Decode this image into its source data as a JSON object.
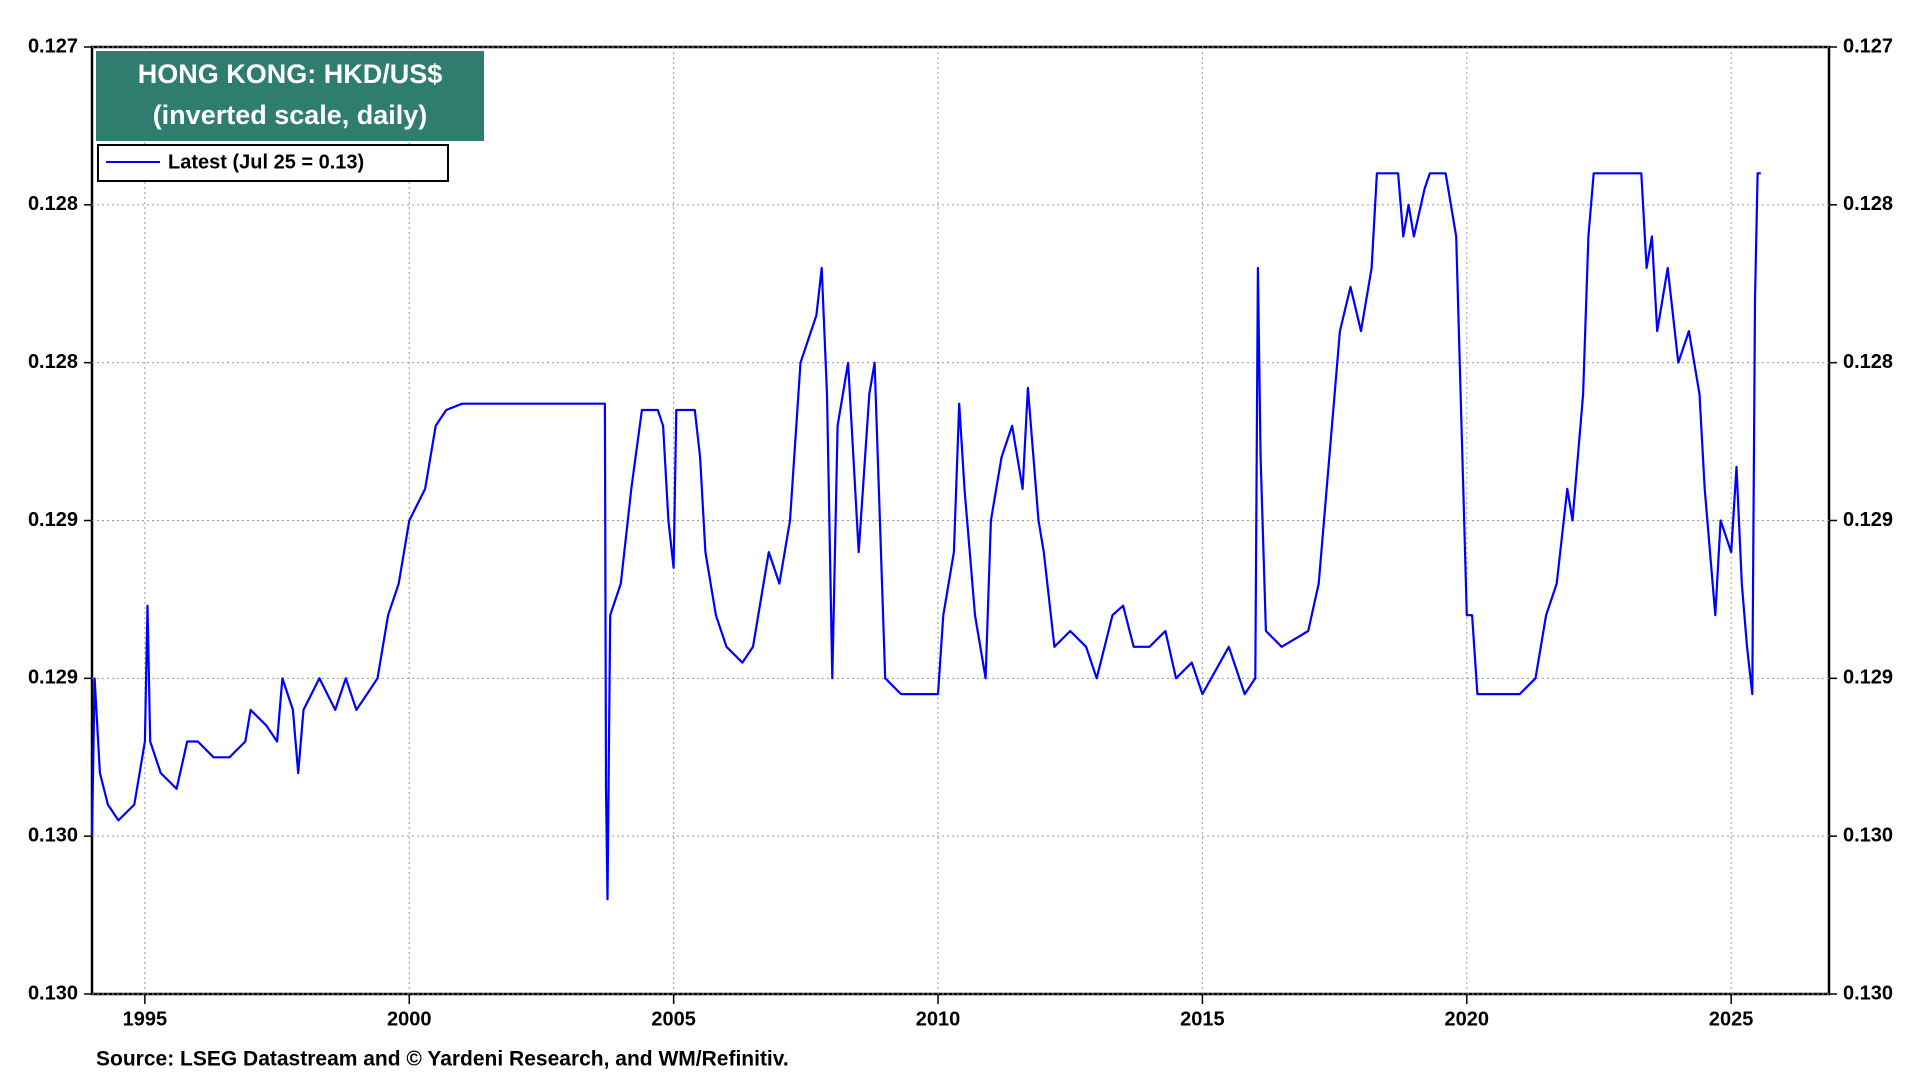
{
  "chart_data": {
    "type": "line",
    "title": "HONG KONG: HKD/US$",
    "subtitle": "(inverted scale, daily)",
    "source": "Source: LSEG Datastream and © Yardeni Research, and WM/Refinitiv.",
    "inverted": true,
    "grid": true,
    "legend": "upper left",
    "xlim": [
      1994.0,
      2026.85
    ],
    "xticks": [
      1995,
      2000,
      2005,
      2010,
      2015,
      2020,
      2025
    ],
    "ylim": [
      0.127,
      0.13
    ],
    "yticks": [
      0.127,
      {
        "value": 0.1275,
        "label": "0.128"
      },
      0.128,
      {
        "value": 0.1285,
        "label": "0.129"
      },
      0.129,
      {
        "value": 0.1295,
        "label": "0.130"
      },
      {
        "value": 0.13,
        "label": "0.130"
      }
    ],
    "series": [
      {
        "name": "Latest (Jul 25 = 0.13)",
        "color": "#0000ff",
        "x": [
          1994.0,
          1994.05,
          1994.15,
          1994.3,
          1994.5,
          1994.8,
          1995.0,
          1995.05,
          1995.1,
          1995.3,
          1995.6,
          1995.8,
          1996.0,
          1996.3,
          1996.6,
          1996.9,
          1997.0,
          1997.3,
          1997.5,
          1997.6,
          1997.8,
          1997.9,
          1998.0,
          1998.3,
          1998.6,
          1998.8,
          1999.0,
          1999.2,
          1999.4,
          1999.6,
          1999.8,
          2000.0,
          2000.3,
          2000.5,
          2000.7,
          2001.0,
          2002.0,
          2003.0,
          2003.7,
          2003.72,
          2003.75,
          2003.8,
          2004.0,
          2004.2,
          2004.4,
          2004.7,
          2004.8,
          2004.9,
          2005.0,
          2005.05,
          2005.4,
          2005.5,
          2005.6,
          2005.8,
          2006.0,
          2006.3,
          2006.5,
          2006.8,
          2007.0,
          2007.2,
          2007.4,
          2007.5,
          2007.7,
          2007.8,
          2007.9,
          2008.0,
          2008.1,
          2008.3,
          2008.5,
          2008.7,
          2008.8,
          2008.9,
          2009.0,
          2009.3,
          2010.0,
          2010.1,
          2010.3,
          2010.4,
          2010.5,
          2010.7,
          2010.9,
          2011.0,
          2011.2,
          2011.4,
          2011.6,
          2011.7,
          2011.9,
          2012.0,
          2012.2,
          2012.5,
          2012.8,
          2013.0,
          2013.3,
          2013.5,
          2013.7,
          2014.0,
          2014.3,
          2014.5,
          2014.8,
          2015.0,
          2015.5,
          2015.8,
          2016.0,
          2016.05,
          2016.1,
          2016.2,
          2016.5,
          2017.0,
          2017.2,
          2017.4,
          2017.6,
          2017.8,
          2018.0,
          2018.2,
          2018.3,
          2018.7,
          2018.8,
          2018.9,
          2019.0,
          2019.2,
          2019.3,
          2019.6,
          2019.7,
          2019.8,
          2019.9,
          2020.0,
          2020.1,
          2020.2,
          2021.0,
          2021.3,
          2021.5,
          2021.7,
          2021.9,
          2022.0,
          2022.1,
          2022.2,
          2022.3,
          2022.4,
          2023.0,
          2023.3,
          2023.4,
          2023.5,
          2023.6,
          2023.8,
          2024.0,
          2024.2,
          2024.4,
          2024.5,
          2024.7,
          2024.8,
          2025.0,
          2025.1,
          2025.2,
          2025.3,
          2025.4,
          2025.45,
          2025.5,
          2025.56
        ],
        "values": [
          0.1295,
          0.129,
          0.1293,
          0.1294,
          0.12945,
          0.1294,
          0.1292,
          0.12877,
          0.1292,
          0.1293,
          0.12935,
          0.1292,
          0.1292,
          0.12925,
          0.12925,
          0.1292,
          0.1291,
          0.12915,
          0.1292,
          0.129,
          0.1291,
          0.1293,
          0.1291,
          0.129,
          0.1291,
          0.129,
          0.1291,
          0.12905,
          0.129,
          0.1288,
          0.1287,
          0.1285,
          0.1284,
          0.1282,
          0.12815,
          0.12813,
          0.12813,
          0.12813,
          0.12813,
          0.12935,
          0.1297,
          0.1288,
          0.1287,
          0.1284,
          0.12815,
          0.12815,
          0.1282,
          0.1285,
          0.12865,
          0.12815,
          0.12815,
          0.1283,
          0.1286,
          0.1288,
          0.1289,
          0.12895,
          0.1289,
          0.1286,
          0.1287,
          0.1285,
          0.128,
          0.12795,
          0.12785,
          0.1277,
          0.1281,
          0.129,
          0.1282,
          0.128,
          0.1286,
          0.1281,
          0.128,
          0.1285,
          0.129,
          0.12905,
          0.12905,
          0.1288,
          0.1286,
          0.12813,
          0.1284,
          0.1288,
          0.129,
          0.1285,
          0.1283,
          0.1282,
          0.1284,
          0.12808,
          0.1285,
          0.1286,
          0.1289,
          0.12885,
          0.1289,
          0.129,
          0.1288,
          0.12877,
          0.1289,
          0.1289,
          0.12885,
          0.129,
          0.12895,
          0.12905,
          0.1289,
          0.12905,
          0.129,
          0.1277,
          0.1283,
          0.12885,
          0.1289,
          0.12885,
          0.1287,
          0.1283,
          0.1279,
          0.12776,
          0.1279,
          0.1277,
          0.1274,
          0.1274,
          0.1276,
          0.1275,
          0.1276,
          0.12745,
          0.1274,
          0.1274,
          0.1275,
          0.1276,
          0.1282,
          0.1288,
          0.1288,
          0.12905,
          0.12905,
          0.129,
          0.1288,
          0.1287,
          0.1284,
          0.1285,
          0.1283,
          0.1281,
          0.1276,
          0.1274,
          0.1274,
          0.1274,
          0.1277,
          0.1276,
          0.1279,
          0.1277,
          0.128,
          0.1279,
          0.1281,
          0.1284,
          0.1288,
          0.1285,
          0.1286,
          0.12833,
          0.1287,
          0.1289,
          0.12905,
          0.1278,
          0.1274,
          0.1274
        ]
      }
    ]
  }
}
